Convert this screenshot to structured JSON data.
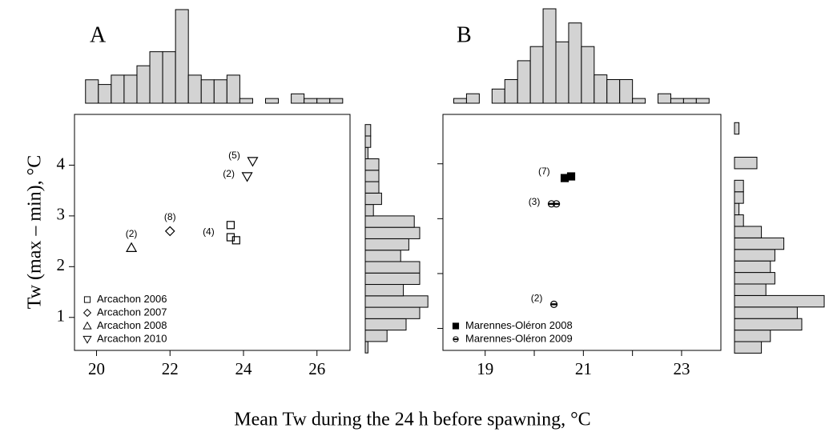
{
  "xlabel": "Mean Tw during the 24 h before spawning, °C",
  "ylabel": "Tw (max – min), °C",
  "chart_data": [
    {
      "type": "scatter",
      "title": "A",
      "xlim": [
        19.4,
        26.9
      ],
      "ylim": [
        0.35,
        5.0
      ],
      "xticks": [
        20,
        22,
        24,
        26
      ],
      "yticks": [
        1,
        2,
        3,
        4
      ],
      "ytick_labels": true,
      "legend": "lower left",
      "series": [
        {
          "name": "Arcachon 2006",
          "marker": "square",
          "color": "#000",
          "x": [
            23.65,
            23.65,
            23.8
          ],
          "y": [
            2.82,
            2.58,
            2.52
          ]
        },
        {
          "name": "Arcachon 2007",
          "marker": "diamond",
          "color": "#000",
          "x": [
            22.0
          ],
          "y": [
            2.7
          ]
        },
        {
          "name": "Arcachon 2008",
          "marker": "triangle-up",
          "color": "#000",
          "x": [
            20.95
          ],
          "y": [
            2.37
          ]
        },
        {
          "name": "Arcachon 2010",
          "marker": "triangle-down",
          "color": "#000",
          "x": [
            24.25,
            24.1
          ],
          "y": [
            4.08,
            3.78
          ]
        }
      ],
      "annotations": [
        {
          "text": "(4)",
          "x": 23.05,
          "y": 2.68
        },
        {
          "text": "(8)",
          "x": 22.0,
          "y": 2.97
        },
        {
          "text": "(2)",
          "x": 20.95,
          "y": 2.64
        },
        {
          "text": "(5)",
          "x": 23.75,
          "y": 4.18
        },
        {
          "text": "(2)",
          "x": 23.6,
          "y": 3.82
        }
      ],
      "top_hist": {
        "bins": [
          19.7,
          20.05,
          20.4,
          20.75,
          21.1,
          21.45,
          21.8,
          22.15,
          22.5,
          22.85,
          23.2,
          23.55,
          23.9,
          24.25,
          24.6,
          24.95,
          25.3,
          25.65,
          26.0,
          26.35,
          26.7
        ],
        "counts": [
          5,
          4,
          6,
          6,
          8,
          11,
          11,
          20,
          6,
          5,
          5,
          6,
          1,
          0,
          1,
          0,
          2,
          1,
          1,
          1
        ],
        "color": "#d3d3d3"
      },
      "right_hist": {
        "bins": [
          0.3,
          0.525,
          0.75,
          0.975,
          1.2,
          1.425,
          1.65,
          1.875,
          2.1,
          2.325,
          2.55,
          2.775,
          3.0,
          3.225,
          3.45,
          3.675,
          3.9,
          4.125,
          4.35,
          4.575,
          4.8
        ],
        "counts": [
          1,
          8,
          15,
          20,
          23,
          14,
          20,
          20,
          13,
          16,
          20,
          18,
          3,
          6,
          5,
          5,
          5,
          1,
          2,
          2
        ],
        "color": "#d3d3d3"
      }
    },
    {
      "type": "scatter",
      "title": "B",
      "xlim": [
        18.14,
        23.8
      ],
      "ylim": [
        0.6,
        4.9
      ],
      "xticks": [
        19,
        21,
        23
      ],
      "xminor_ticks": [
        20,
        22
      ],
      "yticks": [
        1,
        2,
        3,
        4
      ],
      "ytick_labels": false,
      "legend": "lower left",
      "series": [
        {
          "name": "Marennes-Oléron 2008",
          "marker": "filled-square",
          "color": "#000",
          "x": [
            20.62,
            20.75
          ],
          "y": [
            3.74,
            3.77
          ]
        },
        {
          "name": "Marennes-Oléron 2009",
          "marker": "half-circle",
          "color": "#000",
          "x": [
            20.35,
            20.45,
            20.4
          ],
          "y": [
            3.27,
            3.27,
            1.44
          ]
        }
      ],
      "annotations": [
        {
          "text": "(7)",
          "x": 20.2,
          "y": 3.85
        },
        {
          "text": "(3)",
          "x": 20.0,
          "y": 3.3
        },
        {
          "text": "(2)",
          "x": 20.05,
          "y": 1.54
        }
      ],
      "top_hist": {
        "bins": [
          18.36,
          18.62,
          18.88,
          19.14,
          19.4,
          19.66,
          19.92,
          20.18,
          20.44,
          20.7,
          20.96,
          21.22,
          21.48,
          21.74,
          22.0,
          22.26,
          22.52,
          22.78,
          23.04,
          23.3,
          23.56
        ],
        "counts": [
          1,
          2,
          0,
          3,
          5,
          9,
          12,
          20,
          13,
          17,
          12,
          6,
          5,
          5,
          1,
          0,
          2,
          1,
          1,
          1
        ],
        "color": "#d3d3d3"
      },
      "right_hist": {
        "bins": [
          0.55,
          0.76,
          0.97,
          1.18,
          1.39,
          1.6,
          1.81,
          2.02,
          2.23,
          2.44,
          2.65,
          2.86,
          3.07,
          3.28,
          3.49,
          3.7,
          3.91,
          4.12,
          4.33,
          4.54,
          4.75
        ],
        "counts": [
          6,
          8,
          15,
          14,
          20,
          7,
          9,
          8,
          9,
          11,
          6,
          2,
          1,
          2,
          2,
          0,
          5,
          0,
          0,
          1
        ],
        "color": "#d3d3d3"
      }
    }
  ]
}
